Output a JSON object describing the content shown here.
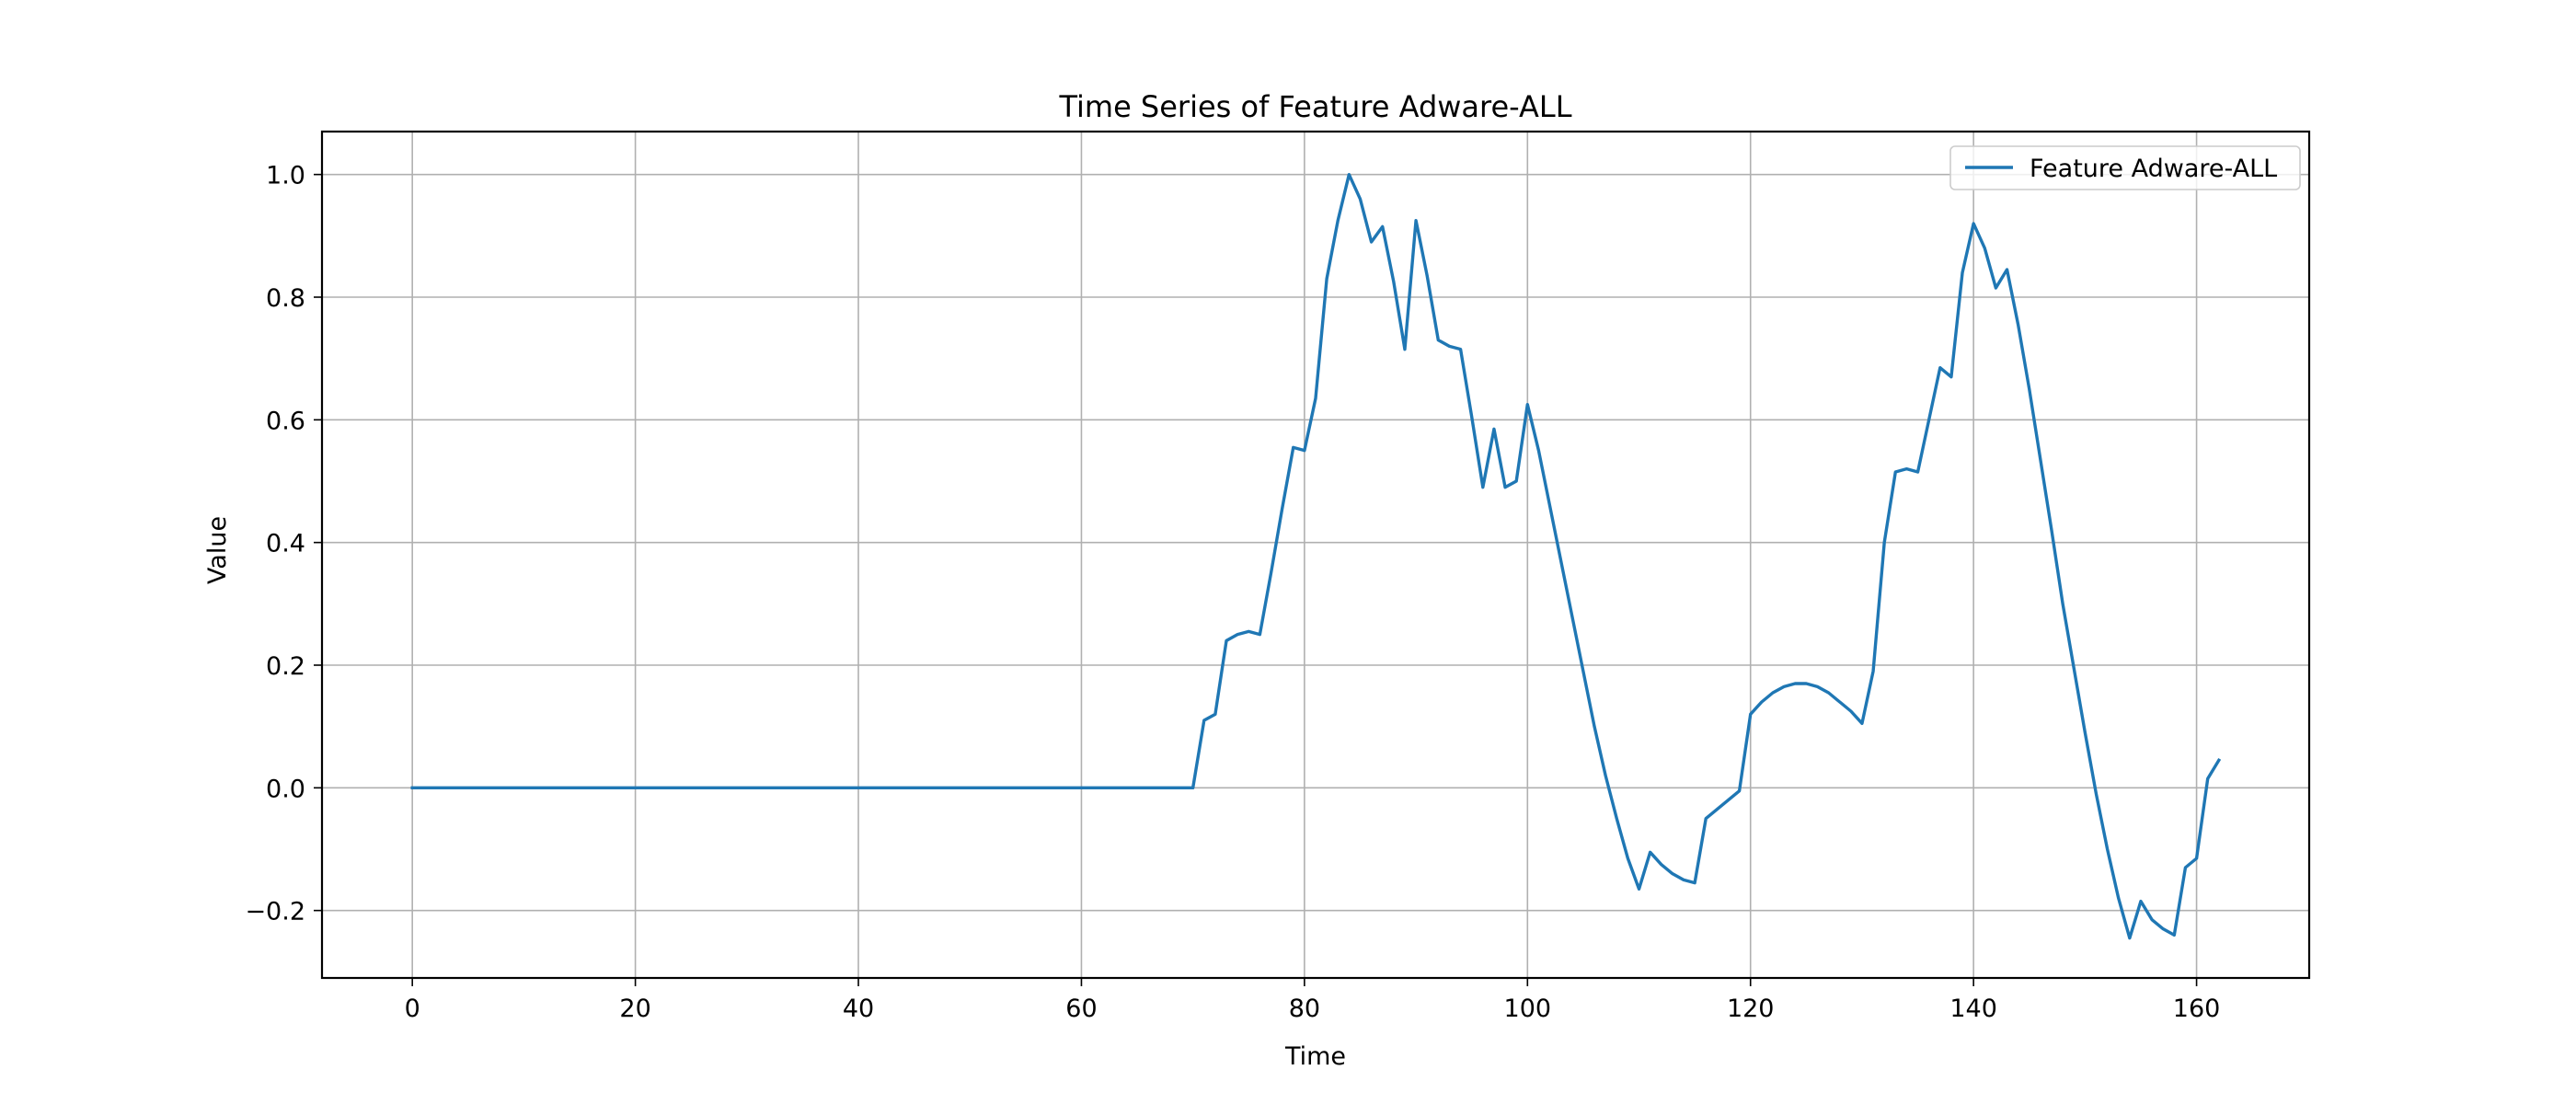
{
  "chart_data": {
    "type": "line",
    "title": "Time Series of Feature Adware-ALL",
    "xlabel": "Time",
    "ylabel": "Value",
    "xlim": [
      -8.1,
      170.1
    ],
    "ylim": [
      -0.31,
      1.07
    ],
    "x_ticks": [
      0,
      20,
      40,
      60,
      80,
      100,
      120,
      140,
      160
    ],
    "x_tick_labels": [
      "0",
      "20",
      "40",
      "60",
      "80",
      "100",
      "120",
      "140",
      "160"
    ],
    "y_ticks": [
      -0.2,
      0.0,
      0.2,
      0.4,
      0.6,
      0.8,
      1.0
    ],
    "y_tick_labels": [
      "−0.2",
      "0.0",
      "0.2",
      "0.4",
      "0.6",
      "0.8",
      "1.0"
    ],
    "grid": true,
    "legend_position": "upper right",
    "series": [
      {
        "name": "Feature Adware-ALL",
        "color": "#1f77b4",
        "x": [
          0,
          1,
          2,
          3,
          4,
          5,
          6,
          7,
          8,
          9,
          10,
          11,
          12,
          13,
          14,
          15,
          16,
          17,
          18,
          19,
          20,
          21,
          22,
          23,
          24,
          25,
          26,
          27,
          28,
          29,
          30,
          31,
          32,
          33,
          34,
          35,
          36,
          37,
          38,
          39,
          40,
          41,
          42,
          43,
          44,
          45,
          46,
          47,
          48,
          49,
          50,
          51,
          52,
          53,
          54,
          55,
          56,
          57,
          58,
          59,
          60,
          61,
          62,
          63,
          64,
          65,
          66,
          67,
          68,
          69,
          70,
          71,
          72,
          73,
          74,
          75,
          76,
          77,
          78,
          79,
          80,
          81,
          82,
          83,
          84,
          85,
          86,
          87,
          88,
          89,
          90,
          91,
          92,
          93,
          94,
          95,
          96,
          97,
          98,
          99,
          100,
          101,
          102,
          103,
          104,
          105,
          106,
          107,
          108,
          109,
          110,
          111,
          112,
          113,
          114,
          115,
          116,
          117,
          118,
          119,
          120,
          121,
          122,
          123,
          124,
          125,
          126,
          127,
          128,
          129,
          130,
          131,
          132,
          133,
          134,
          135,
          136,
          137,
          138,
          139,
          140,
          141,
          142,
          143,
          144,
          145,
          146,
          147,
          148,
          149,
          150,
          151,
          152,
          153,
          154,
          155,
          156,
          157,
          158,
          159,
          160,
          161,
          162
        ],
        "y": [
          0,
          0,
          0,
          0,
          0,
          0,
          0,
          0,
          0,
          0,
          0,
          0,
          0,
          0,
          0,
          0,
          0,
          0,
          0,
          0,
          0,
          0,
          0,
          0,
          0,
          0,
          0,
          0,
          0,
          0,
          0,
          0,
          0,
          0,
          0,
          0,
          0,
          0,
          0,
          0,
          0,
          0,
          0,
          0,
          0,
          0,
          0,
          0,
          0,
          0,
          0,
          0,
          0,
          0,
          0,
          0,
          0,
          0,
          0,
          0,
          0,
          0,
          0,
          0,
          0,
          0,
          0,
          0,
          0,
          0,
          0,
          0.11,
          0.12,
          0.24,
          0.25,
          0.255,
          0.25,
          0.35,
          0.455,
          0.555,
          0.55,
          0.635,
          0.83,
          0.925,
          1.0,
          0.96,
          0.89,
          0.915,
          0.825,
          0.715,
          0.925,
          0.835,
          0.73,
          0.72,
          0.715,
          0.605,
          0.49,
          0.585,
          0.49,
          0.5,
          0.625,
          0.55,
          0.46,
          0.37,
          0.28,
          0.19,
          0.1,
          0.02,
          -0.05,
          -0.115,
          -0.165,
          -0.105,
          -0.125,
          -0.14,
          -0.15,
          -0.155,
          -0.05,
          -0.035,
          -0.02,
          -0.005,
          0.12,
          0.14,
          0.155,
          0.165,
          0.17,
          0.17,
          0.165,
          0.155,
          0.14,
          0.125,
          0.105,
          0.19,
          0.4,
          0.515,
          0.52,
          0.515,
          0.6,
          0.685,
          0.67,
          0.84,
          0.92,
          0.88,
          0.815,
          0.845,
          0.755,
          0.65,
          0.535,
          0.42,
          0.3,
          0.195,
          0.09,
          -0.01,
          -0.1,
          -0.18,
          -0.245,
          -0.185,
          -0.215,
          -0.23,
          -0.24,
          -0.13,
          -0.115,
          0.015,
          0.045
        ]
      }
    ]
  }
}
